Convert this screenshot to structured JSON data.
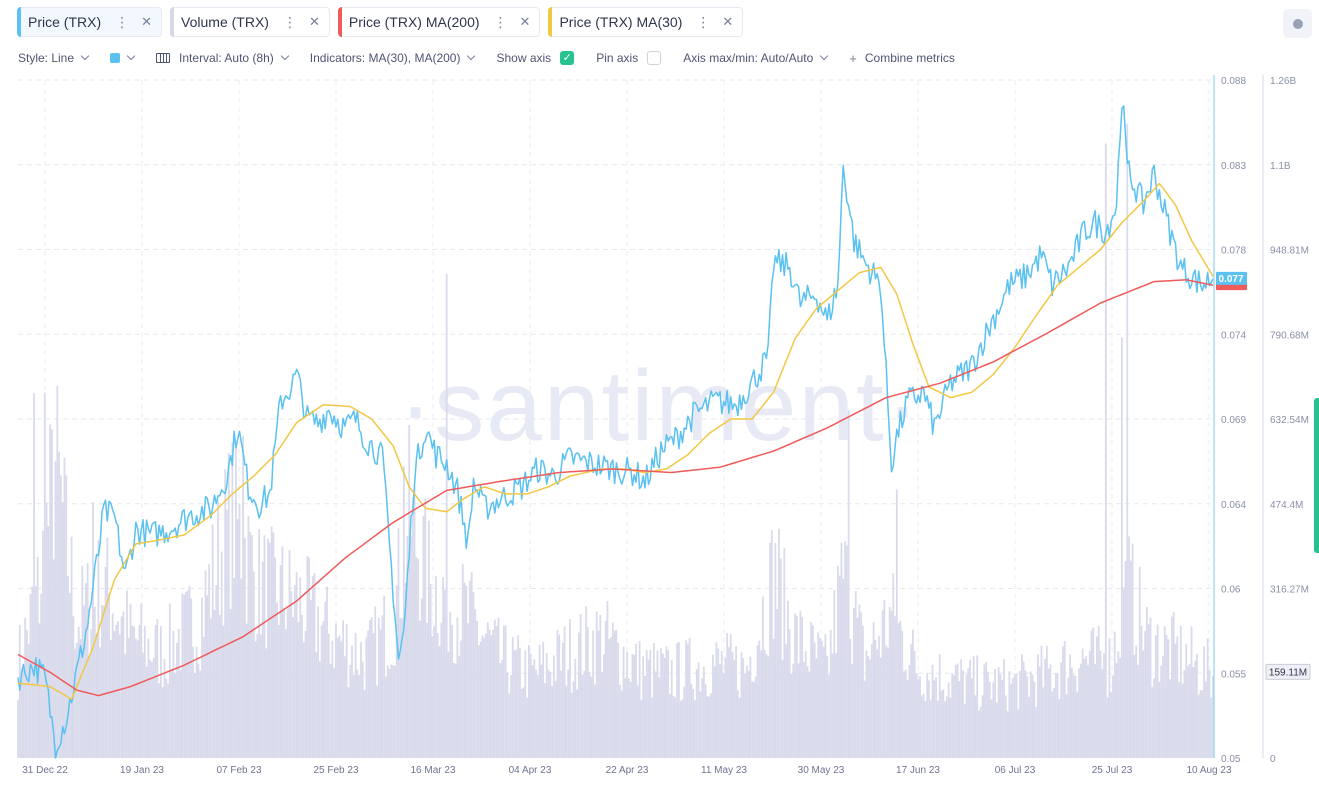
{
  "metric_tabs": [
    {
      "label": "Price (TRX)",
      "color": "#5ac1f0",
      "active": true
    },
    {
      "label": "Volume (TRX)",
      "color": "#d5d7ea",
      "active": false
    },
    {
      "label": "Price (TRX) MA(200)",
      "color": "#ef5a5a",
      "active": false
    },
    {
      "label": "Price (TRX) MA(30)",
      "color": "#f2c744",
      "active": false
    }
  ],
  "tab_menu_glyph": "⋮",
  "tab_close_glyph": "✕",
  "toolbar": {
    "style_label": "Style: Line",
    "interval_label": "Interval: Auto (8h)",
    "indicators_label": "Indicators: MA(30), MA(200)",
    "show_axis_label": "Show axis",
    "show_axis_checked": true,
    "pin_axis_label": "Pin axis",
    "pin_axis_checked": false,
    "axis_label": "Axis max/min: Auto/Auto",
    "combine_label": "Combine metrics",
    "checkmark": "✓",
    "plus": "+"
  },
  "watermark": "·santiment·",
  "chart_data": {
    "type": "line",
    "x_tick_labels": [
      "31 Dec 22",
      "19 Jan 23",
      "07 Feb 23",
      "25 Feb 23",
      "16 Mar 23",
      "04 Apr 23",
      "22 Apr 23",
      "11 May 23",
      "30 May 23",
      "17 Jun 23",
      "06 Jul 23",
      "25 Jul 23",
      "10 Aug 23"
    ],
    "x_range": [
      "2022-12-30",
      "2023-08-10"
    ],
    "price_axis": {
      "ticks": [
        0.088,
        0.083,
        0.078,
        0.074,
        0.069,
        0.064,
        0.06,
        0.055,
        0.05
      ],
      "ylim": [
        0.05,
        0.088
      ]
    },
    "volume_axis": {
      "ticks": [
        "1.26B",
        "1.1B",
        "948.81M",
        "790.68M",
        "632.54M",
        "474.4M",
        "316.27M",
        "159.11M",
        "0"
      ],
      "ylim": [
        0,
        1260000000
      ]
    },
    "current_price_label": "0.077",
    "current_volume_label": "159.11M",
    "grid": true,
    "series": [
      {
        "name": "Price (TRX)",
        "color": "#5ac1f0",
        "keypoints": [
          [
            "2022-12-30",
            0.0545
          ],
          [
            "2023-01-02",
            0.0552
          ],
          [
            "2023-01-04",
            0.0545
          ],
          [
            "2023-01-06",
            0.0508
          ],
          [
            "2023-01-08",
            0.0522
          ],
          [
            "2023-01-10",
            0.0548
          ],
          [
            "2023-01-12",
            0.0575
          ],
          [
            "2023-01-14",
            0.0615
          ],
          [
            "2023-01-15",
            0.0638
          ],
          [
            "2023-01-17",
            0.0635
          ],
          [
            "2023-01-19",
            0.0602
          ],
          [
            "2023-01-21",
            0.0628
          ],
          [
            "2023-01-24",
            0.0625
          ],
          [
            "2023-01-27",
            0.0628
          ],
          [
            "2023-01-31",
            0.0636
          ],
          [
            "2023-02-04",
            0.064
          ],
          [
            "2023-02-07",
            0.0658
          ],
          [
            "2023-02-09",
            0.0685
          ],
          [
            "2023-02-11",
            0.0652
          ],
          [
            "2023-02-13",
            0.0642
          ],
          [
            "2023-02-15",
            0.0648
          ],
          [
            "2023-02-17",
            0.07
          ],
          [
            "2023-02-19",
            0.0708
          ],
          [
            "2023-02-20",
            0.0715
          ],
          [
            "2023-02-22",
            0.069
          ],
          [
            "2023-02-24",
            0.0688
          ],
          [
            "2023-02-26",
            0.0695
          ],
          [
            "2023-03-01",
            0.0685
          ],
          [
            "2023-03-03",
            0.069
          ],
          [
            "2023-03-05",
            0.0678
          ],
          [
            "2023-03-07",
            0.0672
          ],
          [
            "2023-03-08",
            0.0668
          ],
          [
            "2023-03-10",
            0.0595
          ],
          [
            "2023-03-11",
            0.0555
          ],
          [
            "2023-03-12",
            0.057
          ],
          [
            "2023-03-14",
            0.066
          ],
          [
            "2023-03-16",
            0.0685
          ],
          [
            "2023-03-18",
            0.067
          ],
          [
            "2023-03-20",
            0.0665
          ],
          [
            "2023-03-22",
            0.065
          ],
          [
            "2023-03-24",
            0.062
          ],
          [
            "2023-03-25",
            0.0655
          ],
          [
            "2023-03-27",
            0.064
          ],
          [
            "2023-03-30",
            0.0645
          ],
          [
            "2023-04-03",
            0.0652
          ],
          [
            "2023-04-06",
            0.0662
          ],
          [
            "2023-04-09",
            0.0658
          ],
          [
            "2023-04-12",
            0.0668
          ],
          [
            "2023-04-16",
            0.0665
          ],
          [
            "2023-04-20",
            0.0662
          ],
          [
            "2023-04-24",
            0.066
          ],
          [
            "2023-04-26",
            0.0655
          ],
          [
            "2023-04-29",
            0.0672
          ],
          [
            "2023-05-02",
            0.068
          ],
          [
            "2023-05-05",
            0.0692
          ],
          [
            "2023-05-09",
            0.07
          ],
          [
            "2023-05-13",
            0.0698
          ],
          [
            "2023-05-17",
            0.0715
          ],
          [
            "2023-05-19",
            0.0725
          ],
          [
            "2023-05-20",
            0.0778
          ],
          [
            "2023-05-23",
            0.0775
          ],
          [
            "2023-05-25",
            0.0755
          ],
          [
            "2023-05-28",
            0.076
          ],
          [
            "2023-05-30",
            0.0745
          ],
          [
            "2023-06-01",
            0.0765
          ],
          [
            "2023-06-02",
            0.0832
          ],
          [
            "2023-06-04",
            0.079
          ],
          [
            "2023-06-06",
            0.0778
          ],
          [
            "2023-06-09",
            0.0765
          ],
          [
            "2023-06-11",
            0.0665
          ],
          [
            "2023-06-12",
            0.068
          ],
          [
            "2023-06-14",
            0.07
          ],
          [
            "2023-06-17",
            0.0705
          ],
          [
            "2023-06-19",
            0.0685
          ],
          [
            "2023-06-22",
            0.071
          ],
          [
            "2023-06-26",
            0.072
          ],
          [
            "2023-06-29",
            0.074
          ],
          [
            "2023-07-03",
            0.0765
          ],
          [
            "2023-07-06",
            0.077
          ],
          [
            "2023-07-09",
            0.0782
          ],
          [
            "2023-07-11",
            0.0765
          ],
          [
            "2023-07-14",
            0.0775
          ],
          [
            "2023-07-17",
            0.0795
          ],
          [
            "2023-07-19",
            0.08
          ],
          [
            "2023-07-21",
            0.0795
          ],
          [
            "2023-07-23",
            0.081
          ],
          [
            "2023-07-24",
            0.0872
          ],
          [
            "2023-07-25",
            0.083
          ],
          [
            "2023-07-28",
            0.081
          ],
          [
            "2023-07-30",
            0.0828
          ],
          [
            "2023-08-02",
            0.0795
          ],
          [
            "2023-08-04",
            0.0775
          ],
          [
            "2023-08-06",
            0.077
          ],
          [
            "2023-08-08",
            0.0765
          ],
          [
            "2023-08-10",
            0.077
          ]
        ]
      },
      {
        "name": "Price (TRX) MA(30)",
        "color": "#f2c744",
        "keypoints": [
          [
            "2022-12-30",
            0.0542
          ],
          [
            "2023-01-05",
            0.054
          ],
          [
            "2023-01-09",
            0.0533
          ],
          [
            "2023-01-13",
            0.0562
          ],
          [
            "2023-01-17",
            0.06
          ],
          [
            "2023-01-21",
            0.062
          ],
          [
            "2023-01-25",
            0.0622
          ],
          [
            "2023-01-30",
            0.0625
          ],
          [
            "2023-02-04",
            0.0636
          ],
          [
            "2023-02-08",
            0.0648
          ],
          [
            "2023-02-12",
            0.0658
          ],
          [
            "2023-02-16",
            0.067
          ],
          [
            "2023-02-20",
            0.0688
          ],
          [
            "2023-02-25",
            0.0698
          ],
          [
            "2023-03-02",
            0.0697
          ],
          [
            "2023-03-06",
            0.069
          ],
          [
            "2023-03-10",
            0.0675
          ],
          [
            "2023-03-13",
            0.0652
          ],
          [
            "2023-03-16",
            0.064
          ],
          [
            "2023-03-20",
            0.0638
          ],
          [
            "2023-03-23",
            0.0645
          ],
          [
            "2023-03-27",
            0.0652
          ],
          [
            "2023-03-31",
            0.0648
          ],
          [
            "2023-04-04",
            0.0648
          ],
          [
            "2023-04-08",
            0.0652
          ],
          [
            "2023-04-12",
            0.0658
          ],
          [
            "2023-04-18",
            0.0662
          ],
          [
            "2023-04-22",
            0.0662
          ],
          [
            "2023-04-26",
            0.066
          ],
          [
            "2023-04-30",
            0.0662
          ],
          [
            "2023-05-04",
            0.067
          ],
          [
            "2023-05-08",
            0.0682
          ],
          [
            "2023-05-12",
            0.069
          ],
          [
            "2023-05-16",
            0.069
          ],
          [
            "2023-05-20",
            0.0705
          ],
          [
            "2023-05-24",
            0.0735
          ],
          [
            "2023-05-28",
            0.0752
          ],
          [
            "2023-06-01",
            0.0762
          ],
          [
            "2023-06-05",
            0.0772
          ],
          [
            "2023-06-09",
            0.0775
          ],
          [
            "2023-06-12",
            0.076
          ],
          [
            "2023-06-15",
            0.0732
          ],
          [
            "2023-06-18",
            0.0708
          ],
          [
            "2023-06-22",
            0.0702
          ],
          [
            "2023-06-26",
            0.0705
          ],
          [
            "2023-06-30",
            0.0715
          ],
          [
            "2023-07-04",
            0.073
          ],
          [
            "2023-07-08",
            0.0748
          ],
          [
            "2023-07-12",
            0.0765
          ],
          [
            "2023-07-16",
            0.0775
          ],
          [
            "2023-07-20",
            0.0785
          ],
          [
            "2023-07-24",
            0.08
          ],
          [
            "2023-07-28",
            0.0812
          ],
          [
            "2023-07-31",
            0.0822
          ],
          [
            "2023-08-03",
            0.081
          ],
          [
            "2023-08-06",
            0.079
          ],
          [
            "2023-08-10",
            0.077
          ]
        ]
      },
      {
        "name": "Price (TRX) MA(200)",
        "color": "#ef5a5a",
        "keypoints": [
          [
            "2022-12-30",
            0.0558
          ],
          [
            "2023-01-05",
            0.0548
          ],
          [
            "2023-01-10",
            0.0538
          ],
          [
            "2023-01-14",
            0.0535
          ],
          [
            "2023-01-20",
            0.054
          ],
          [
            "2023-01-30",
            0.0552
          ],
          [
            "2023-02-10",
            0.0568
          ],
          [
            "2023-02-20",
            0.0588
          ],
          [
            "2023-03-01",
            0.0612
          ],
          [
            "2023-03-10",
            0.0632
          ],
          [
            "2023-03-20",
            0.065
          ],
          [
            "2023-03-30",
            0.0655
          ],
          [
            "2023-04-10",
            0.066
          ],
          [
            "2023-04-20",
            0.0662
          ],
          [
            "2023-05-01",
            0.066
          ],
          [
            "2023-05-10",
            0.0663
          ],
          [
            "2023-05-20",
            0.0672
          ],
          [
            "2023-05-30",
            0.0685
          ],
          [
            "2023-06-10",
            0.0702
          ],
          [
            "2023-06-20",
            0.071
          ],
          [
            "2023-06-30",
            0.0722
          ],
          [
            "2023-07-10",
            0.0738
          ],
          [
            "2023-07-20",
            0.0755
          ],
          [
            "2023-07-30",
            0.0767
          ],
          [
            "2023-08-05",
            0.0768
          ],
          [
            "2023-08-10",
            0.0765
          ]
        ]
      },
      {
        "name": "Volume (TRX)",
        "color": "#d5d7ea",
        "keypoints": [
          [
            "2022-12-30",
            180000000
          ],
          [
            "2023-01-03",
            320000000
          ],
          [
            "2023-01-06",
            560000000
          ],
          [
            "2023-01-10",
            260000000
          ],
          [
            "2023-01-15",
            330000000
          ],
          [
            "2023-01-20",
            230000000
          ],
          [
            "2023-01-26",
            200000000
          ],
          [
            "2023-02-02",
            270000000
          ],
          [
            "2023-02-08",
            460000000
          ],
          [
            "2023-02-13",
            330000000
          ],
          [
            "2023-02-20",
            300000000
          ],
          [
            "2023-02-27",
            230000000
          ],
          [
            "2023-03-05",
            190000000
          ],
          [
            "2023-03-10",
            260000000
          ],
          [
            "2023-03-13",
            460000000
          ],
          [
            "2023-03-17",
            330000000
          ],
          [
            "2023-03-24",
            270000000
          ],
          [
            "2023-03-30",
            190000000
          ],
          [
            "2023-04-05",
            160000000
          ],
          [
            "2023-04-12",
            200000000
          ],
          [
            "2023-04-18",
            230000000
          ],
          [
            "2023-04-25",
            170000000
          ],
          [
            "2023-05-01",
            160000000
          ],
          [
            "2023-05-08",
            180000000
          ],
          [
            "2023-05-15",
            170000000
          ],
          [
            "2023-05-20",
            350000000
          ],
          [
            "2023-05-24",
            230000000
          ],
          [
            "2023-05-30",
            170000000
          ],
          [
            "2023-06-02",
            350000000
          ],
          [
            "2023-06-06",
            190000000
          ],
          [
            "2023-06-11",
            270000000
          ],
          [
            "2023-06-16",
            170000000
          ],
          [
            "2023-06-22",
            150000000
          ],
          [
            "2023-06-28",
            140000000
          ],
          [
            "2023-07-04",
            140000000
          ],
          [
            "2023-07-10",
            160000000
          ],
          [
            "2023-07-16",
            190000000
          ],
          [
            "2023-07-22",
            180000000
          ],
          [
            "2023-07-25",
            330000000
          ],
          [
            "2023-07-29",
            220000000
          ],
          [
            "2023-08-03",
            200000000
          ],
          [
            "2023-08-10",
            159000000
          ]
        ],
        "spikes": [
          [
            "2023-01-02",
            700000000
          ],
          [
            "2023-01-04",
            750000000
          ],
          [
            "2023-01-13",
            500000000
          ],
          [
            "2023-02-10",
            650000000
          ],
          [
            "2023-03-12",
            560000000
          ],
          [
            "2023-03-20",
            900000000
          ],
          [
            "2023-05-21",
            430000000
          ],
          [
            "2023-06-03",
            700000000
          ],
          [
            "2023-06-12",
            520000000
          ],
          [
            "2023-07-21",
            1230000000
          ],
          [
            "2023-07-24",
            840000000
          ],
          [
            "2023-07-25",
            1200000000
          ]
        ]
      }
    ]
  }
}
